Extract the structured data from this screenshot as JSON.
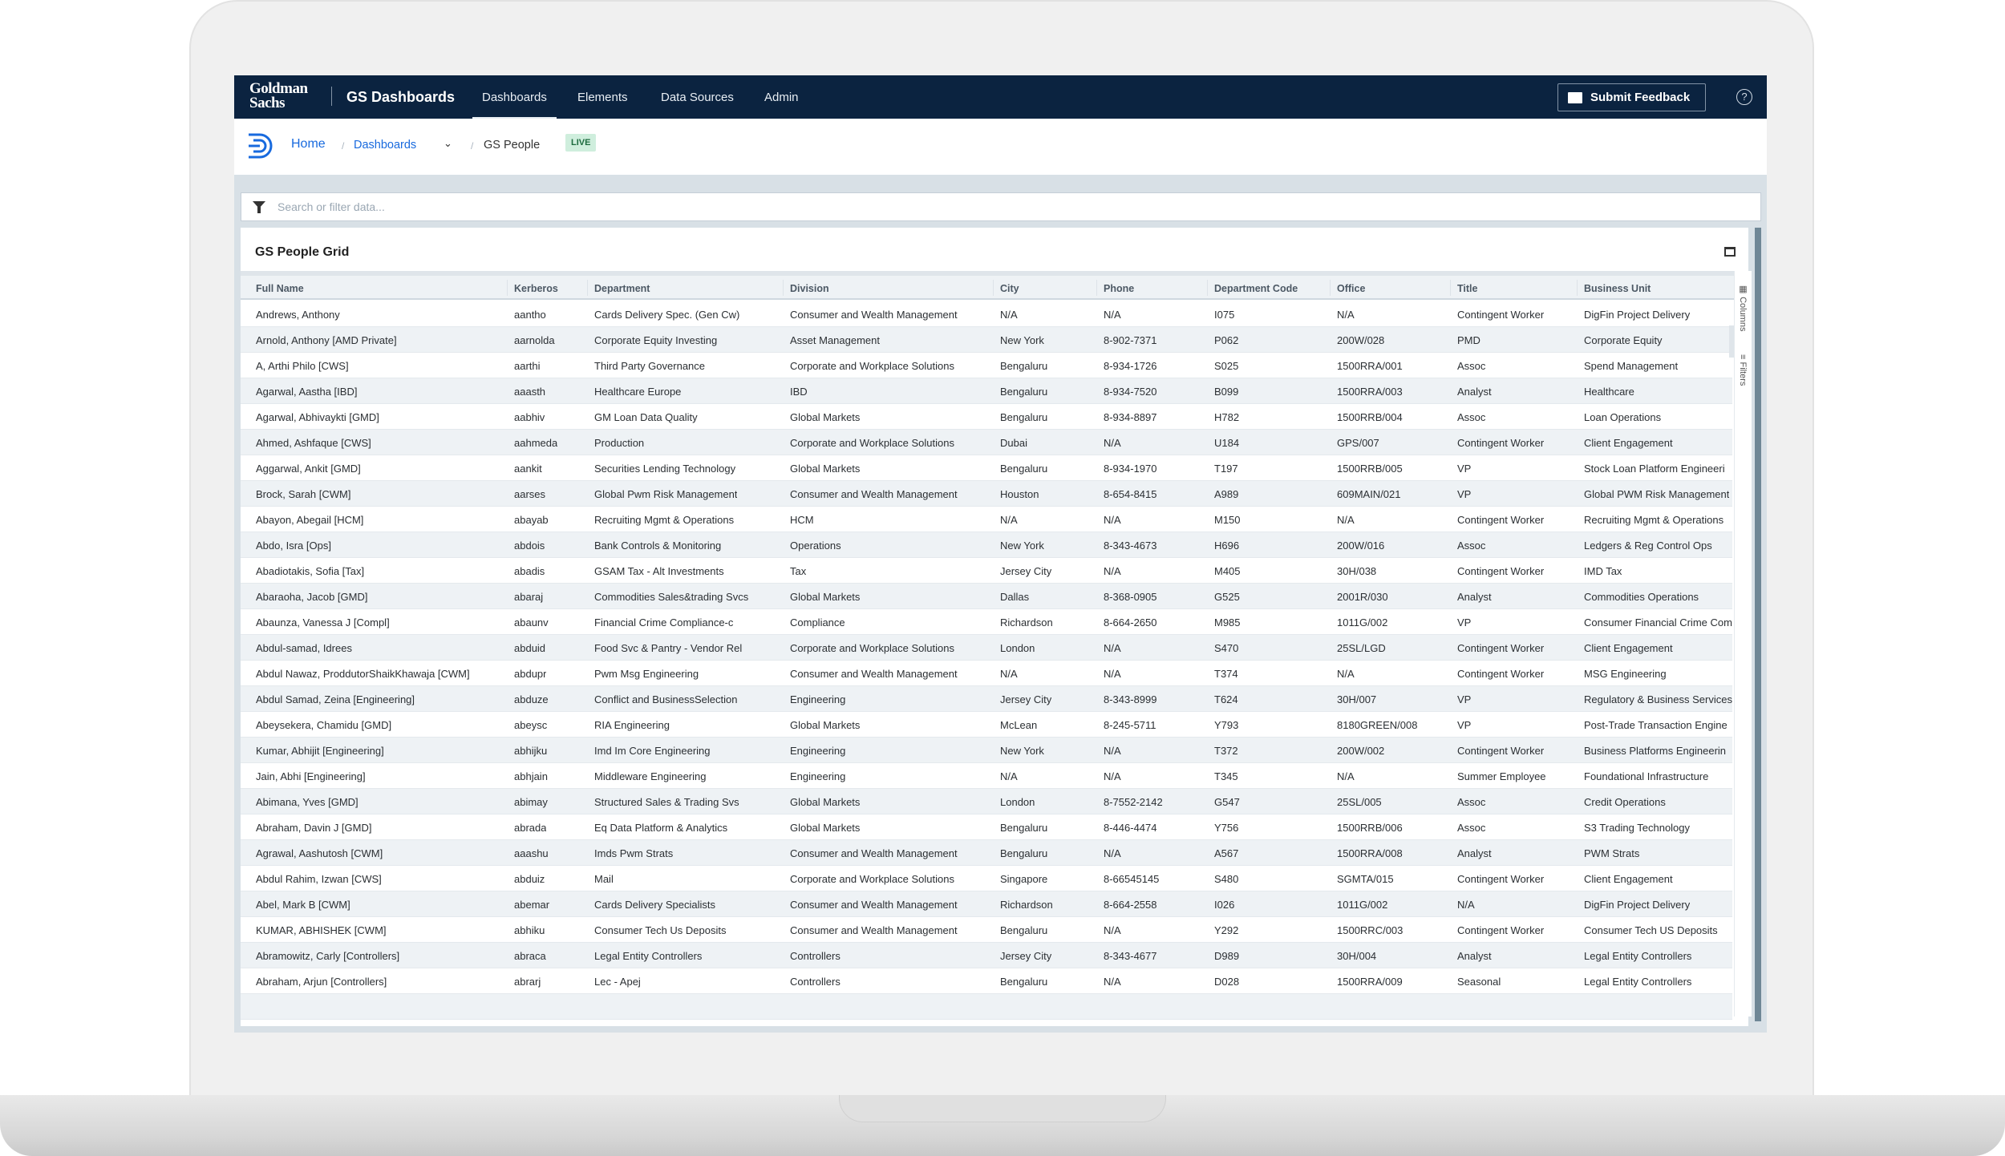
{
  "nav": {
    "logo": "Goldman Sachs",
    "app_name": "GS Dashboards",
    "items": [
      "Dashboards",
      "Elements",
      "Data Sources",
      "Admin"
    ],
    "active": "Dashboards",
    "feedback": "Submit Feedback",
    "help": "?"
  },
  "breadcrumb": {
    "home": "Home",
    "dashboards": "Dashboards",
    "current": "GS People",
    "badge": "LIVE"
  },
  "search": {
    "placeholder": "Search or filter data...",
    "value": ""
  },
  "grid": {
    "title": "GS People Grid",
    "side_tabs": [
      "Columns",
      "Filters"
    ],
    "columns": [
      "Full Name",
      "Kerberos",
      "Department",
      "Division",
      "City",
      "Phone",
      "Department Code",
      "Office",
      "Title",
      "Business Unit"
    ],
    "rows": [
      [
        "Andrews, Anthony",
        "aantho",
        "Cards Delivery Spec. (Gen Cw)",
        "Consumer and Wealth Management",
        "N/A",
        "N/A",
        "I075",
        "N/A",
        "Contingent Worker",
        "DigFin Project Delivery"
      ],
      [
        "Arnold, Anthony [AMD Private]",
        "aarnolda",
        "Corporate Equity Investing",
        "Asset Management",
        "New York",
        "8-902-7371",
        "P062",
        "200W/028",
        "PMD",
        "Corporate Equity"
      ],
      [
        "A, Arthi Philo [CWS]",
        "aarthi",
        "Third Party Governance",
        "Corporate and Workplace Solutions",
        "Bengaluru",
        "8-934-1726",
        "S025",
        "1500RRA/001",
        "Assoc",
        "Spend Management"
      ],
      [
        "Agarwal, Aastha [IBD]",
        "aaasth",
        "Healthcare Europe",
        "IBD",
        "Bengaluru",
        "8-934-7520",
        "B099",
        "1500RRA/003",
        "Analyst",
        "Healthcare"
      ],
      [
        "Agarwal, Abhivaykti [GMD]",
        "aabhiv",
        "GM Loan Data Quality",
        "Global Markets",
        "Bengaluru",
        "8-934-8897",
        "H782",
        "1500RRB/004",
        "Assoc",
        "Loan Operations"
      ],
      [
        "Ahmed, Ashfaque [CWS]",
        "aahmeda",
        "Production",
        "Corporate and Workplace Solutions",
        "Dubai",
        "N/A",
        "U184",
        "GPS/007",
        "Contingent Worker",
        "Client Engagement"
      ],
      [
        "Aggarwal, Ankit [GMD]",
        "aankit",
        "Securities Lending Technology",
        "Global Markets",
        "Bengaluru",
        "8-934-1970",
        "T197",
        "1500RRB/005",
        "VP",
        "Stock Loan Platform Engineeri"
      ],
      [
        "Brock, Sarah [CWM]",
        "aarses",
        "Global Pwm Risk Management",
        "Consumer and Wealth Management",
        "Houston",
        "8-654-8415",
        "A989",
        "609MAIN/021",
        "VP",
        "Global PWM Risk Management"
      ],
      [
        "Abayon, Abegail [HCM]",
        "abayab",
        "Recruiting Mgmt & Operations",
        "HCM",
        "N/A",
        "N/A",
        "M150",
        "N/A",
        "Contingent Worker",
        "Recruiting Mgmt & Operations"
      ],
      [
        "Abdo, Isra [Ops]",
        "abdois",
        "Bank Controls & Monitoring",
        "Operations",
        "New York",
        "8-343-4673",
        "H696",
        "200W/016",
        "Assoc",
        "Ledgers & Reg Control Ops"
      ],
      [
        "Abadiotakis, Sofia [Tax]",
        "abadis",
        "GSAM Tax - Alt Investments",
        "Tax",
        "Jersey City",
        "N/A",
        "M405",
        "30H/038",
        "Contingent Worker",
        "IMD Tax"
      ],
      [
        "Abaraoha, Jacob [GMD]",
        "abaraj",
        "Commodities Sales&trading Svcs",
        "Global Markets",
        "Dallas",
        "8-368-0905",
        "G525",
        "2001R/030",
        "Analyst",
        "Commodities Operations"
      ],
      [
        "Abaunza, Vanessa J [Compl]",
        "abaunv",
        "Financial Crime Compliance-c",
        "Compliance",
        "Richardson",
        "8-664-2650",
        "M985",
        "1011G/002",
        "VP",
        "Consumer Financial Crime Com"
      ],
      [
        "Abdul-samad, Idrees",
        "abduid",
        "Food Svc & Pantry - Vendor Rel",
        "Corporate and Workplace Solutions",
        "London",
        "N/A",
        "S470",
        "25SL/LGD",
        "Contingent Worker",
        "Client Engagement"
      ],
      [
        "Abdul Nawaz, ProddutorShaikKhawaja [CWM]",
        "abdupr",
        "Pwm Msg Engineering",
        "Consumer and Wealth Management",
        "N/A",
        "N/A",
        "T374",
        "N/A",
        "Contingent Worker",
        "MSG Engineering"
      ],
      [
        "Abdul Samad, Zeina [Engineering]",
        "abduze",
        "Conflict and BusinessSelection",
        "Engineering",
        "Jersey City",
        "8-343-8999",
        "T624",
        "30H/007",
        "VP",
        "Regulatory & Business Services"
      ],
      [
        "Abeysekera, Chamidu [GMD]",
        "abeysc",
        "RIA Engineering",
        "Global Markets",
        "McLean",
        "8-245-5711",
        "Y793",
        "8180GREEN/008",
        "VP",
        "Post-Trade Transaction Engine"
      ],
      [
        "Kumar, Abhijit [Engineering]",
        "abhijku",
        "Imd Im Core Engineering",
        "Engineering",
        "New York",
        "N/A",
        "T372",
        "200W/002",
        "Contingent Worker",
        "Business Platforms Engineerin"
      ],
      [
        "Jain, Abhi [Engineering]",
        "abhjain",
        "Middleware Engineering",
        "Engineering",
        "N/A",
        "N/A",
        "T345",
        "N/A",
        "Summer Employee",
        "Foundational Infrastructure"
      ],
      [
        "Abimana, Yves [GMD]",
        "abimay",
        "Structured Sales & Trading Svs",
        "Global Markets",
        "London",
        "8-7552-2142",
        "G547",
        "25SL/005",
        "Assoc",
        "Credit Operations"
      ],
      [
        "Abraham, Davin J [GMD]",
        "abrada",
        "Eq Data Platform & Analytics",
        "Global Markets",
        "Bengaluru",
        "8-446-4474",
        "Y756",
        "1500RRB/006",
        "Assoc",
        "S3 Trading Technology"
      ],
      [
        "Agrawal, Aashutosh [CWM]",
        "aaashu",
        "Imds Pwm Strats",
        "Consumer and Wealth Management",
        "Bengaluru",
        "N/A",
        "A567",
        "1500RRA/008",
        "Analyst",
        "PWM Strats"
      ],
      [
        "Abdul Rahim, Izwan [CWS]",
        "abduiz",
        "Mail",
        "Corporate and Workplace Solutions",
        "Singapore",
        "8-66545145",
        "S480",
        "SGMTA/015",
        "Contingent Worker",
        "Client Engagement"
      ],
      [
        "Abel, Mark B [CWM]",
        "abemar",
        "Cards Delivery Specialists",
        "Consumer and Wealth Management",
        "Richardson",
        "8-664-2558",
        "I026",
        "1011G/002",
        "N/A",
        "DigFin Project Delivery"
      ],
      [
        "KUMAR, ABHISHEK [CWM]",
        "abhiku",
        "Consumer Tech Us Deposits",
        "Consumer and Wealth Management",
        "Bengaluru",
        "N/A",
        "Y292",
        "1500RRC/003",
        "Contingent Worker",
        "Consumer Tech US Deposits"
      ],
      [
        "Abramowitz, Carly [Controllers]",
        "abraca",
        "Legal Entity Controllers",
        "Controllers",
        "Jersey City",
        "8-343-4677",
        "D989",
        "30H/004",
        "Analyst",
        "Legal Entity Controllers"
      ],
      [
        "Abraham, Arjun [Controllers]",
        "abrarj",
        "Lec - Apej",
        "Controllers",
        "Bengaluru",
        "N/A",
        "D028",
        "1500RRA/009",
        "Seasonal",
        "Legal Entity Controllers"
      ]
    ]
  }
}
